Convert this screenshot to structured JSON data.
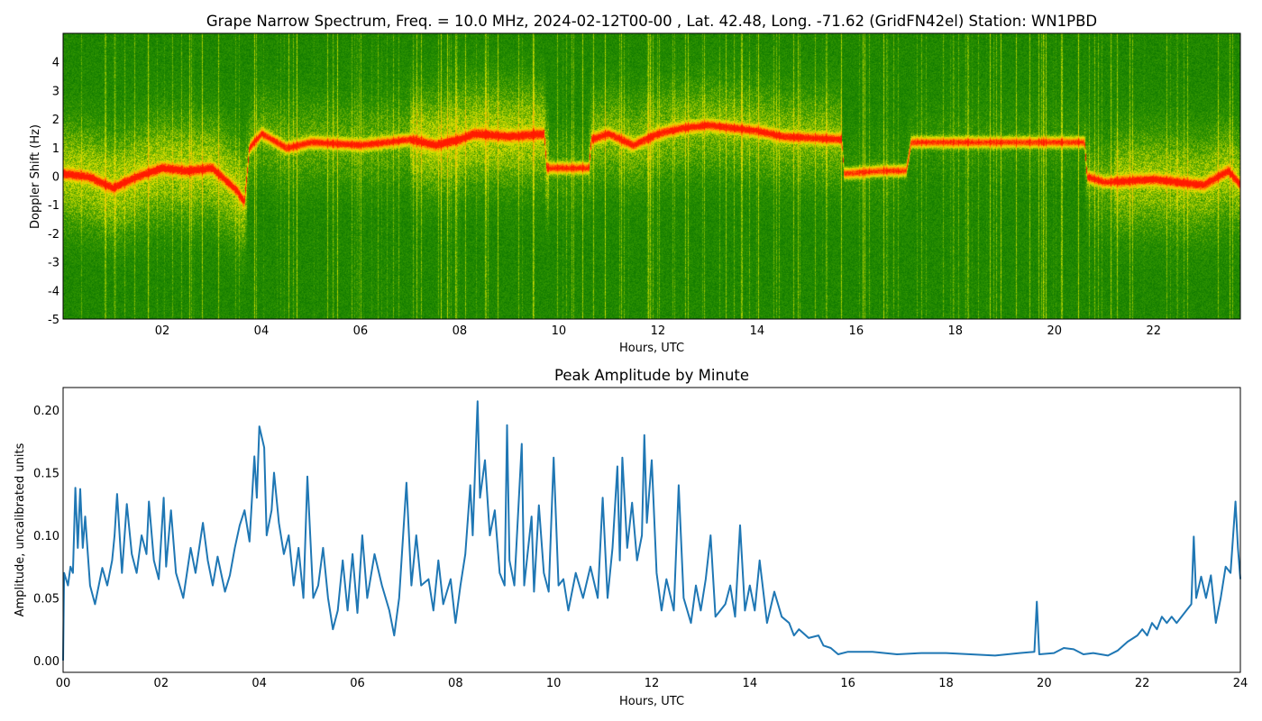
{
  "chart_data": [
    {
      "type": "heatmap",
      "title": "Grape Narrow Spectrum, Freq. = 10.0 MHz, 2024-02-12T00-00 , Lat.  42.48, Long. -71.62 (GridFN42el) Station: WN1PBD",
      "xlabel": "Hours, UTC",
      "ylabel": "Doppler Shift (Hz)",
      "xlim": [
        0,
        23.75
      ],
      "ylim": [
        -5,
        5
      ],
      "xticks": [
        "02",
        "04",
        "06",
        "08",
        "10",
        "12",
        "14",
        "16",
        "18",
        "20",
        "22"
      ],
      "xtick_values": [
        2,
        4,
        6,
        8,
        10,
        12,
        14,
        16,
        18,
        20,
        22
      ],
      "yticks": [
        "-5",
        "-4",
        "-3",
        "-2",
        "-1",
        "0",
        "1",
        "2",
        "3",
        "4"
      ],
      "ytick_values": [
        -5,
        -4,
        -3,
        -2,
        -1,
        0,
        1,
        2,
        3,
        4
      ],
      "colormap": [
        "#006c00",
        "#2f9400",
        "#e0e400",
        "#ffa000",
        "#ff1a00"
      ],
      "peak_doppler_trace": [
        [
          0,
          0.1
        ],
        [
          0.5,
          0.0
        ],
        [
          1.0,
          -0.4
        ],
        [
          1.5,
          0.0
        ],
        [
          2.0,
          0.3
        ],
        [
          2.5,
          0.2
        ],
        [
          3.0,
          0.3
        ],
        [
          3.5,
          -0.5
        ],
        [
          3.65,
          -0.9
        ],
        [
          3.75,
          1.0
        ],
        [
          4.0,
          1.5
        ],
        [
          4.5,
          1.0
        ],
        [
          5.0,
          1.2
        ],
        [
          6.0,
          1.1
        ],
        [
          7.0,
          1.3
        ],
        [
          7.5,
          1.1
        ],
        [
          8.0,
          1.3
        ],
        [
          8.3,
          1.5
        ],
        [
          9.0,
          1.4
        ],
        [
          9.7,
          1.5
        ],
        [
          9.75,
          0.3
        ],
        [
          10.6,
          0.3
        ],
        [
          10.65,
          1.3
        ],
        [
          11.0,
          1.5
        ],
        [
          11.5,
          1.1
        ],
        [
          12.0,
          1.5
        ],
        [
          12.5,
          1.7
        ],
        [
          13.0,
          1.8
        ],
        [
          14.0,
          1.6
        ],
        [
          14.5,
          1.4
        ],
        [
          15.7,
          1.3
        ],
        [
          15.75,
          0.1
        ],
        [
          16.5,
          0.2
        ],
        [
          17.0,
          0.2
        ],
        [
          17.1,
          1.2
        ],
        [
          20.6,
          1.2
        ],
        [
          20.65,
          0.0
        ],
        [
          21.0,
          -0.2
        ],
        [
          22.0,
          -0.1
        ],
        [
          22.5,
          -0.2
        ],
        [
          23.0,
          -0.3
        ],
        [
          23.5,
          0.2
        ],
        [
          23.75,
          -0.3
        ]
      ]
    },
    {
      "type": "line",
      "title": "Peak Amplitude by Minute",
      "xlabel": "Hours, UTC",
      "ylabel": "Amplitude, uncalibrated units",
      "xlim": [
        0,
        24
      ],
      "ylim": [
        -0.0094,
        0.218
      ],
      "xticks": [
        "00",
        "02",
        "04",
        "06",
        "08",
        "10",
        "12",
        "14",
        "16",
        "18",
        "20",
        "22",
        "24"
      ],
      "xtick_values": [
        0,
        2,
        4,
        6,
        8,
        10,
        12,
        14,
        16,
        18,
        20,
        22,
        24
      ],
      "yticks": [
        "0.00",
        "0.05",
        "0.10",
        "0.15",
        "0.20"
      ],
      "ytick_values": [
        0,
        0.05,
        0.1,
        0.15,
        0.2
      ],
      "color": "#1f77b4",
      "points": [
        [
          0,
          0
        ],
        [
          0.02,
          0.07
        ],
        [
          0.1,
          0.06
        ],
        [
          0.15,
          0.075
        ],
        [
          0.2,
          0.07
        ],
        [
          0.25,
          0.138
        ],
        [
          0.3,
          0.09
        ],
        [
          0.35,
          0.137
        ],
        [
          0.4,
          0.09
        ],
        [
          0.45,
          0.115
        ],
        [
          0.55,
          0.06
        ],
        [
          0.65,
          0.045
        ],
        [
          0.8,
          0.074
        ],
        [
          0.9,
          0.06
        ],
        [
          1.0,
          0.08
        ],
        [
          1.05,
          0.1
        ],
        [
          1.1,
          0.133
        ],
        [
          1.2,
          0.07
        ],
        [
          1.3,
          0.125
        ],
        [
          1.4,
          0.085
        ],
        [
          1.5,
          0.07
        ],
        [
          1.6,
          0.1
        ],
        [
          1.7,
          0.085
        ],
        [
          1.75,
          0.127
        ],
        [
          1.85,
          0.08
        ],
        [
          1.95,
          0.065
        ],
        [
          2.05,
          0.13
        ],
        [
          2.1,
          0.075
        ],
        [
          2.2,
          0.12
        ],
        [
          2.3,
          0.07
        ],
        [
          2.45,
          0.05
        ],
        [
          2.6,
          0.09
        ],
        [
          2.7,
          0.07
        ],
        [
          2.85,
          0.11
        ],
        [
          2.95,
          0.08
        ],
        [
          3.05,
          0.06
        ],
        [
          3.15,
          0.083
        ],
        [
          3.3,
          0.055
        ],
        [
          3.4,
          0.068
        ],
        [
          3.5,
          0.09
        ],
        [
          3.6,
          0.108
        ],
        [
          3.7,
          0.12
        ],
        [
          3.8,
          0.095
        ],
        [
          3.9,
          0.163
        ],
        [
          3.95,
          0.13
        ],
        [
          4.0,
          0.187
        ],
        [
          4.1,
          0.17
        ],
        [
          4.15,
          0.1
        ],
        [
          4.25,
          0.12
        ],
        [
          4.3,
          0.15
        ],
        [
          4.4,
          0.11
        ],
        [
          4.5,
          0.085
        ],
        [
          4.6,
          0.1
        ],
        [
          4.7,
          0.06
        ],
        [
          4.8,
          0.09
        ],
        [
          4.9,
          0.05
        ],
        [
          4.98,
          0.147
        ],
        [
          5.1,
          0.05
        ],
        [
          5.2,
          0.06
        ],
        [
          5.3,
          0.09
        ],
        [
          5.4,
          0.05
        ],
        [
          5.5,
          0.025
        ],
        [
          5.6,
          0.04
        ],
        [
          5.7,
          0.08
        ],
        [
          5.8,
          0.04
        ],
        [
          5.9,
          0.085
        ],
        [
          6.0,
          0.038
        ],
        [
          6.1,
          0.1
        ],
        [
          6.2,
          0.05
        ],
        [
          6.35,
          0.085
        ],
        [
          6.5,
          0.06
        ],
        [
          6.65,
          0.04
        ],
        [
          6.75,
          0.02
        ],
        [
          6.85,
          0.05
        ],
        [
          7.0,
          0.142
        ],
        [
          7.1,
          0.06
        ],
        [
          7.2,
          0.1
        ],
        [
          7.3,
          0.06
        ],
        [
          7.45,
          0.065
        ],
        [
          7.55,
          0.04
        ],
        [
          7.65,
          0.08
        ],
        [
          7.75,
          0.045
        ],
        [
          7.9,
          0.065
        ],
        [
          8.0,
          0.03
        ],
        [
          8.1,
          0.06
        ],
        [
          8.2,
          0.085
        ],
        [
          8.3,
          0.14
        ],
        [
          8.35,
          0.1
        ],
        [
          8.45,
          0.207
        ],
        [
          8.5,
          0.13
        ],
        [
          8.6,
          0.16
        ],
        [
          8.7,
          0.1
        ],
        [
          8.8,
          0.12
        ],
        [
          8.9,
          0.07
        ],
        [
          9.0,
          0.06
        ],
        [
          9.05,
          0.188
        ],
        [
          9.1,
          0.08
        ],
        [
          9.2,
          0.06
        ],
        [
          9.35,
          0.173
        ],
        [
          9.4,
          0.06
        ],
        [
          9.55,
          0.115
        ],
        [
          9.6,
          0.055
        ],
        [
          9.7,
          0.124
        ],
        [
          9.8,
          0.07
        ],
        [
          9.9,
          0.055
        ],
        [
          10.0,
          0.162
        ],
        [
          10.1,
          0.06
        ],
        [
          10.2,
          0.065
        ],
        [
          10.3,
          0.04
        ],
        [
          10.45,
          0.07
        ],
        [
          10.6,
          0.05
        ],
        [
          10.75,
          0.075
        ],
        [
          10.9,
          0.05
        ],
        [
          11.0,
          0.13
        ],
        [
          11.1,
          0.05
        ],
        [
          11.2,
          0.09
        ],
        [
          11.3,
          0.155
        ],
        [
          11.35,
          0.08
        ],
        [
          11.4,
          0.162
        ],
        [
          11.5,
          0.09
        ],
        [
          11.6,
          0.126
        ],
        [
          11.7,
          0.08
        ],
        [
          11.8,
          0.1
        ],
        [
          11.85,
          0.18
        ],
        [
          11.9,
          0.11
        ],
        [
          12.0,
          0.16
        ],
        [
          12.1,
          0.07
        ],
        [
          12.2,
          0.04
        ],
        [
          12.3,
          0.065
        ],
        [
          12.45,
          0.04
        ],
        [
          12.55,
          0.14
        ],
        [
          12.65,
          0.05
        ],
        [
          12.8,
          0.03
        ],
        [
          12.9,
          0.06
        ],
        [
          13.0,
          0.04
        ],
        [
          13.1,
          0.065
        ],
        [
          13.2,
          0.1
        ],
        [
          13.3,
          0.035
        ],
        [
          13.5,
          0.045
        ],
        [
          13.6,
          0.06
        ],
        [
          13.7,
          0.035
        ],
        [
          13.8,
          0.108
        ],
        [
          13.9,
          0.04
        ],
        [
          14.0,
          0.06
        ],
        [
          14.1,
          0.04
        ],
        [
          14.2,
          0.08
        ],
        [
          14.35,
          0.03
        ],
        [
          14.5,
          0.055
        ],
        [
          14.65,
          0.035
        ],
        [
          14.8,
          0.03
        ],
        [
          14.9,
          0.02
        ],
        [
          15.0,
          0.025
        ],
        [
          15.2,
          0.018
        ],
        [
          15.4,
          0.02
        ],
        [
          15.5,
          0.012
        ],
        [
          15.65,
          0.01
        ],
        [
          15.8,
          0.005
        ],
        [
          16.0,
          0.007
        ],
        [
          16.5,
          0.007
        ],
        [
          17.0,
          0.005
        ],
        [
          17.5,
          0.006
        ],
        [
          18.0,
          0.006
        ],
        [
          18.5,
          0.005
        ],
        [
          19.0,
          0.004
        ],
        [
          19.5,
          0.006
        ],
        [
          19.8,
          0.007
        ],
        [
          19.85,
          0.047
        ],
        [
          19.9,
          0.005
        ],
        [
          20.2,
          0.006
        ],
        [
          20.4,
          0.01
        ],
        [
          20.6,
          0.009
        ],
        [
          20.8,
          0.005
        ],
        [
          21.0,
          0.006
        ],
        [
          21.3,
          0.004
        ],
        [
          21.5,
          0.008
        ],
        [
          21.7,
          0.015
        ],
        [
          21.9,
          0.02
        ],
        [
          22.0,
          0.025
        ],
        [
          22.1,
          0.02
        ],
        [
          22.2,
          0.03
        ],
        [
          22.3,
          0.025
        ],
        [
          22.4,
          0.035
        ],
        [
          22.5,
          0.03
        ],
        [
          22.6,
          0.035
        ],
        [
          22.7,
          0.03
        ],
        [
          22.9,
          0.04
        ],
        [
          23.0,
          0.045
        ],
        [
          23.05,
          0.099
        ],
        [
          23.1,
          0.05
        ],
        [
          23.2,
          0.067
        ],
        [
          23.3,
          0.05
        ],
        [
          23.4,
          0.068
        ],
        [
          23.5,
          0.03
        ],
        [
          23.6,
          0.05
        ],
        [
          23.7,
          0.075
        ],
        [
          23.8,
          0.07
        ],
        [
          23.9,
          0.127
        ],
        [
          23.95,
          0.09
        ],
        [
          24.0,
          0.065
        ]
      ]
    }
  ]
}
